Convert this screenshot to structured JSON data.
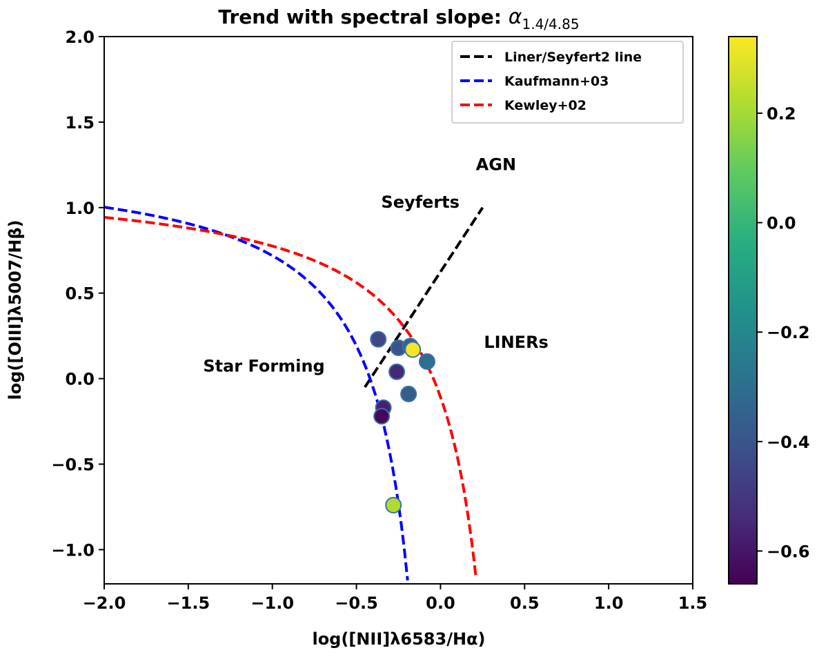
{
  "chart_data": {
    "type": "scatter",
    "title": "Trend with spectral slope: ",
    "title_math": "α",
    "title_math_sub": "1.4/4.85",
    "xlabel": "log([NII]λ6583/Hα)",
    "ylabel": "log([OIII]λ5007/Hβ)",
    "xlim": [
      -2.0,
      1.5
    ],
    "ylim": [
      -1.2,
      2.0
    ],
    "xticks": [
      -2.0,
      -1.5,
      -1.0,
      -0.5,
      0.0,
      0.5,
      1.0,
      1.5
    ],
    "yticks": [
      -1.0,
      -0.5,
      0.0,
      0.5,
      1.0,
      1.5,
      2.0
    ],
    "xtick_labels": [
      "−2.0",
      "−1.5",
      "−1.0",
      "−0.5",
      "0.0",
      "0.5",
      "1.0",
      "1.5"
    ],
    "ytick_labels": [
      "−1.0",
      "−0.5",
      "0.0",
      "0.5",
      "1.0",
      "1.5",
      "2.0"
    ],
    "colorbar": {
      "min": -0.66,
      "max": 0.34,
      "ticks": [
        -0.6,
        -0.4,
        -0.2,
        0.0,
        0.2
      ],
      "tick_labels": [
        "−0.6",
        "−0.4",
        "−0.2",
        "0.0",
        "0.2"
      ],
      "colormap": "viridis"
    },
    "lines": [
      {
        "name": "Liner/Seyfert2 line",
        "color": "#000000",
        "style": "dashed",
        "kind": "linear",
        "x_range": [
          -0.45,
          0.25
        ],
        "slope": 1.5,
        "intercept": 0.625
      },
      {
        "name": "Kaufmann+03",
        "color": "#0000ff",
        "style": "dashed",
        "kind": "bpt",
        "a": 0.61,
        "b": 0.05,
        "c": 1.3,
        "x_range": [
          -2.0,
          -0.196
        ]
      },
      {
        "name": "Kewley+02",
        "color": "#ff0000",
        "style": "dashed",
        "kind": "bpt",
        "a": 0.61,
        "b": 0.47,
        "c": 1.19,
        "x_range": [
          -2.0,
          0.21
        ]
      }
    ],
    "points": [
      {
        "x": -0.37,
        "y": 0.23,
        "value": -0.45
      },
      {
        "x": -0.25,
        "y": 0.18,
        "value": -0.4
      },
      {
        "x": -0.18,
        "y": 0.19,
        "value": -0.35
      },
      {
        "x": -0.165,
        "y": 0.17,
        "value": 0.33
      },
      {
        "x": -0.08,
        "y": 0.1,
        "value": -0.3
      },
      {
        "x": -0.26,
        "y": 0.04,
        "value": -0.55
      },
      {
        "x": -0.19,
        "y": -0.09,
        "value": -0.37
      },
      {
        "x": -0.34,
        "y": -0.17,
        "value": -0.57
      },
      {
        "x": -0.35,
        "y": -0.22,
        "value": -0.64
      },
      {
        "x": -0.28,
        "y": -0.74,
        "value": 0.22
      }
    ],
    "annotations": [
      {
        "text": "AGN",
        "x": 0.33,
        "y": 1.22
      },
      {
        "text": "Seyferts",
        "x": -0.12,
        "y": 1.0
      },
      {
        "text": "LINERs",
        "x": 0.45,
        "y": 0.18
      },
      {
        "text": "Star Forming",
        "x": -1.05,
        "y": 0.04
      }
    ],
    "legend_position": "top-right"
  }
}
